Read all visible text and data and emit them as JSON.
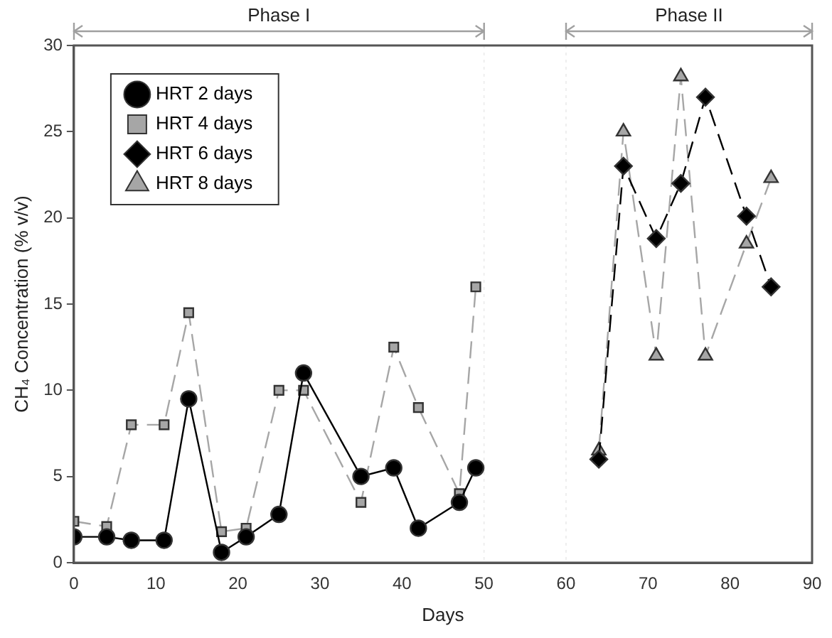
{
  "chart_data": {
    "type": "line",
    "xlabel": "Days",
    "ylabel": "CH₄ Concentration (% v/v)",
    "xlim": [
      0,
      90
    ],
    "xticks": [
      0,
      10,
      20,
      30,
      40,
      50,
      60,
      70,
      80,
      90
    ],
    "ylim": [
      0,
      30
    ],
    "yticks": [
      0,
      5,
      10,
      15,
      20,
      25,
      30
    ],
    "grid": false,
    "legend": "top left",
    "series": [
      {
        "name": "HRT 2 days",
        "color": "#000000",
        "marker": "circle",
        "line_style": "solid",
        "x": [
          0,
          4,
          7,
          11,
          14,
          18,
          21,
          25,
          28,
          35,
          39,
          42,
          47,
          49
        ],
        "values": [
          1.5,
          1.5,
          1.3,
          1.3,
          9.5,
          0.6,
          1.5,
          2.8,
          11,
          5,
          5.5,
          2,
          3.5,
          5.5
        ]
      },
      {
        "name": "HRT 4 days",
        "color": "#a6a6a6",
        "marker": "square",
        "line_style": "dashed",
        "x": [
          0,
          4,
          7,
          11,
          14,
          18,
          21,
          25,
          28,
          35,
          39,
          42,
          47,
          49
        ],
        "values": [
          2.4,
          2.1,
          8,
          8,
          14.5,
          1.8,
          2,
          10,
          10,
          3.5,
          12.5,
          9,
          4,
          16
        ]
      },
      {
        "name": "HRT 6 days",
        "color": "#000000",
        "marker": "diamond",
        "line_style": "dashed",
        "x": [
          64,
          67,
          71,
          74,
          77,
          82,
          85
        ],
        "values": [
          6,
          23,
          18.8,
          22,
          27,
          20.1,
          16
        ]
      },
      {
        "name": "HRT 8 days",
        "color": "#a6a6a6",
        "marker": "triangle",
        "line_style": "dashed",
        "x": [
          64,
          67,
          71,
          74,
          77,
          82,
          85
        ],
        "values": [
          6.5,
          25,
          12,
          28.2,
          12,
          18.5,
          22.3
        ]
      }
    ],
    "ref_lines": [
      {
        "axis": "x",
        "value": 50,
        "color": "#eeeeee",
        "line_style": "dotted"
      },
      {
        "axis": "x",
        "value": 60,
        "color": "#eeeeee",
        "line_style": "dotted"
      }
    ],
    "annotations": [
      "Phase I",
      "Phase II"
    ]
  }
}
